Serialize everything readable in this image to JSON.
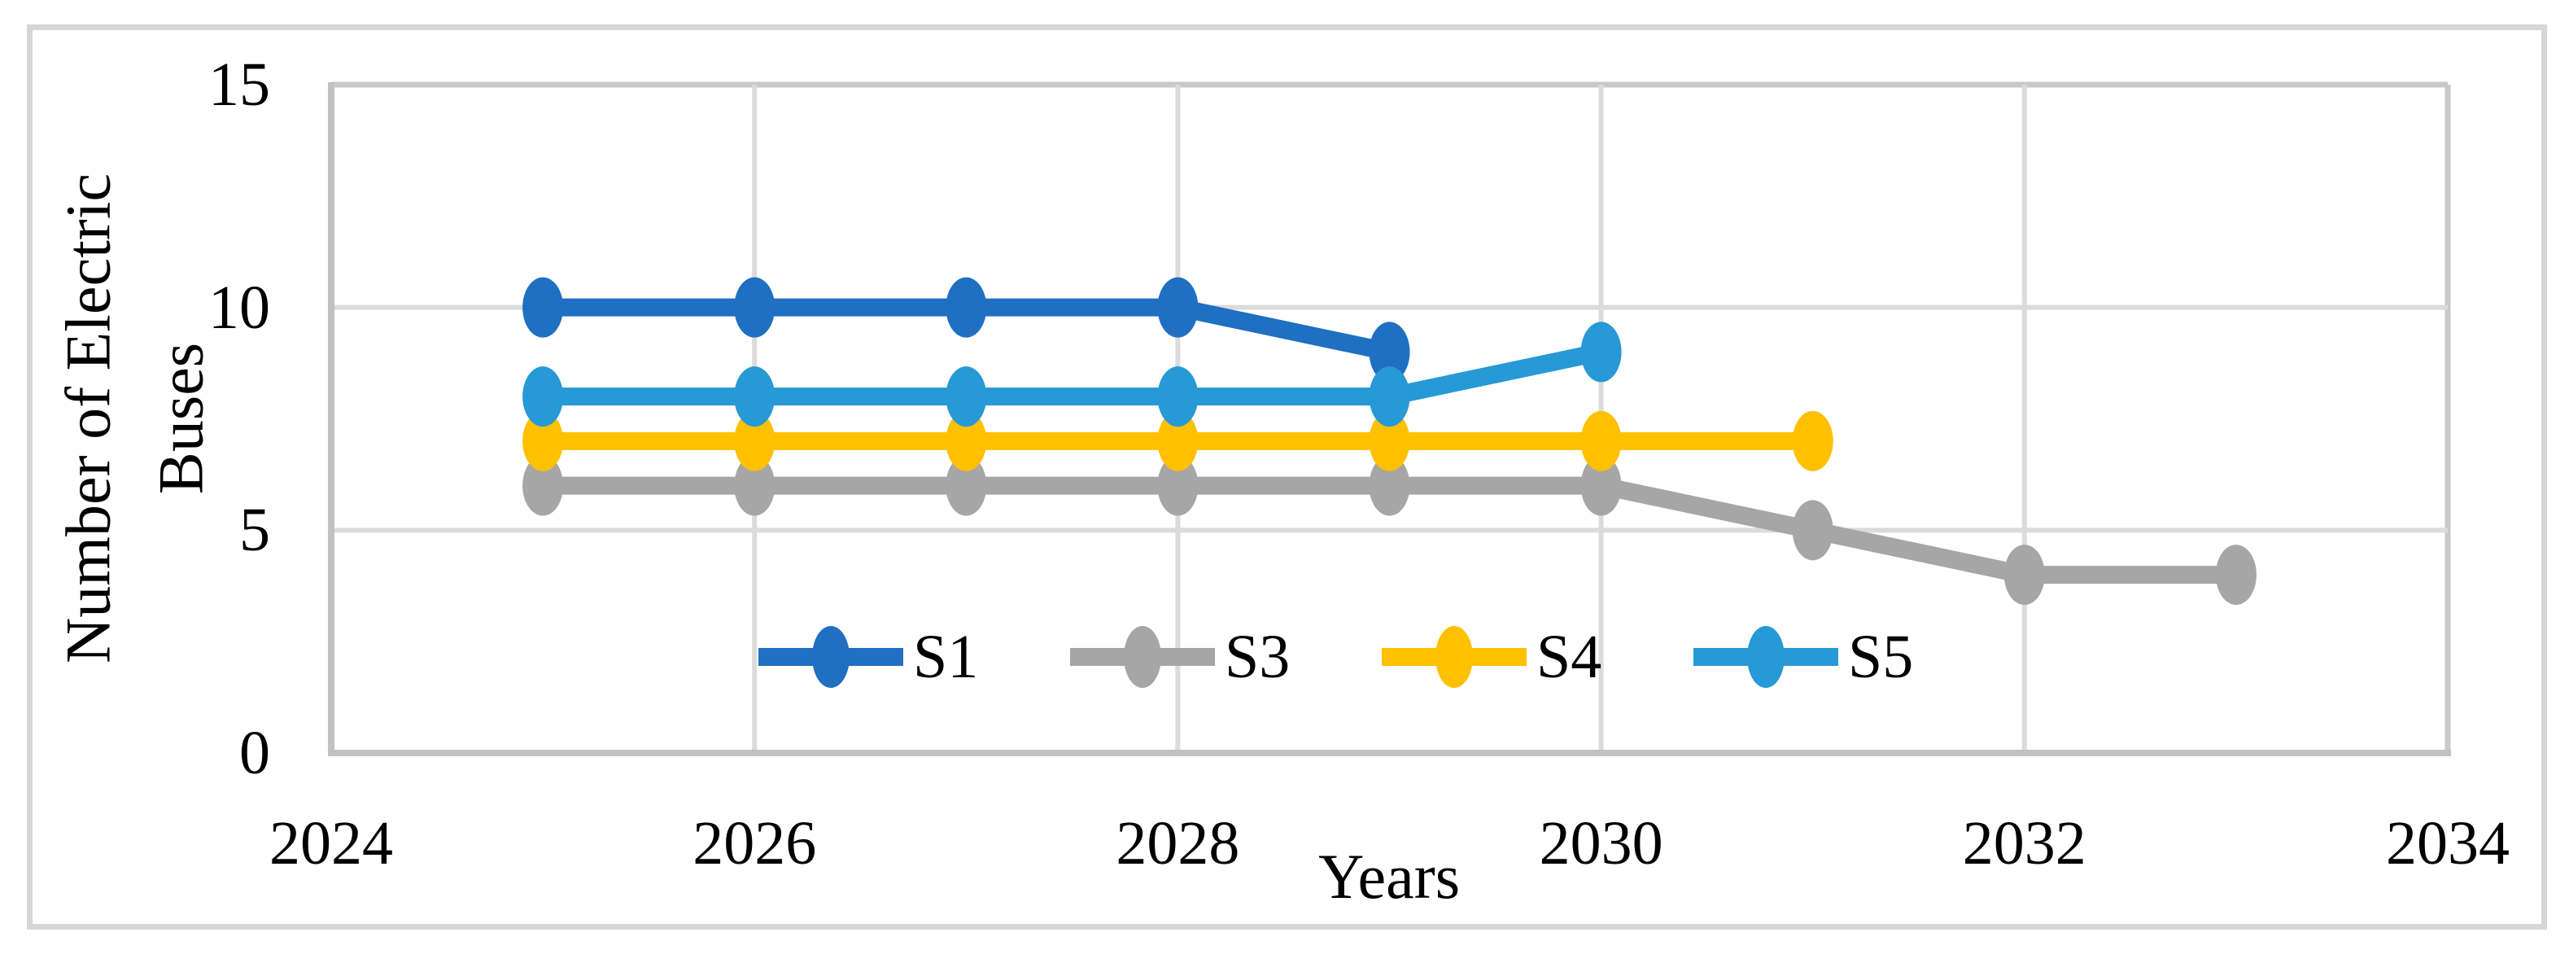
{
  "chart_data": {
    "type": "line",
    "title": "",
    "xlabel": "Years",
    "ylabel": "Number of Electric Buses",
    "ylabel_lines": [
      "Number of Electric",
      "Buses"
    ],
    "xlim": [
      2024,
      2034
    ],
    "ylim": [
      0,
      15
    ],
    "x_ticks": [
      2024,
      2026,
      2028,
      2030,
      2032,
      2034
    ],
    "x_tick_labels": [
      "2024",
      "2026",
      "2028",
      "2030",
      "2032",
      "2034"
    ],
    "y_ticks": [
      0,
      5,
      10,
      15
    ],
    "y_tick_labels": [
      "0",
      "5",
      "10",
      "15"
    ],
    "grid": true,
    "legend": {
      "position": "inside-bottom-center",
      "entries": [
        "S1",
        "S3",
        "S4",
        "S5"
      ]
    },
    "series": [
      {
        "name": "S1",
        "color": "#1F6FC3",
        "x": [
          2025,
          2026,
          2027,
          2028,
          2029
        ],
        "y": [
          10,
          10,
          10,
          10,
          9
        ]
      },
      {
        "name": "S3",
        "color": "#A6A6A6",
        "x": [
          2025,
          2026,
          2027,
          2028,
          2029,
          2030,
          2031,
          2032,
          2033
        ],
        "y": [
          6,
          6,
          6,
          6,
          6,
          6,
          5,
          4,
          4
        ]
      },
      {
        "name": "S4",
        "color": "#FFC000",
        "x": [
          2025,
          2026,
          2027,
          2028,
          2029,
          2030,
          2031
        ],
        "y": [
          7,
          7,
          7,
          7,
          7,
          7,
          7
        ]
      },
      {
        "name": "S5",
        "color": "#2699D6",
        "x": [
          2025,
          2026,
          2027,
          2028,
          2029,
          2030
        ],
        "y": [
          8,
          8,
          8,
          8,
          8,
          9
        ]
      }
    ],
    "style": {
      "grid_color": "#DBDBDB",
      "frame_color": "#C9C9C9",
      "axis_color": "#C1C1C1",
      "figure_border_color": "#D6D6D6",
      "text_color": "#000000",
      "background": "#FFFFFF"
    }
  }
}
